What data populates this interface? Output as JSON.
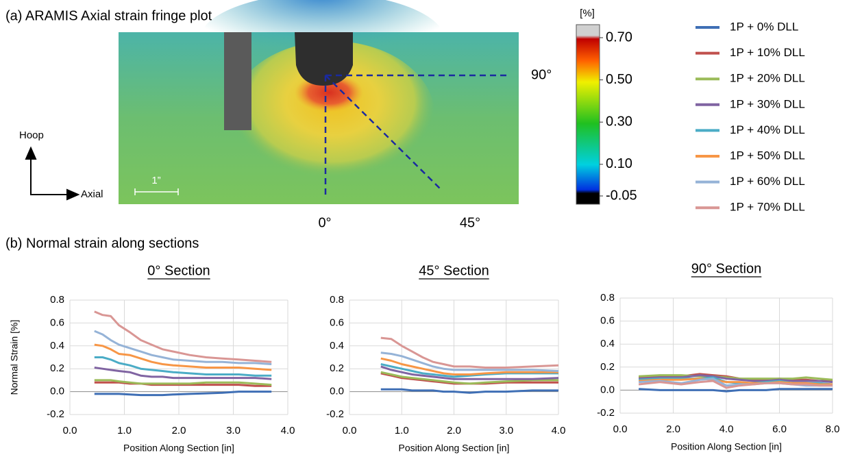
{
  "figure": {
    "panel_a_title": "(a) ARAMIS Axial strain fringe plot",
    "panel_b_title": "(b) Normal strain along sections",
    "hoop_label": "Hoop",
    "axial_label": "Axial",
    "scale_label": "1”",
    "angle_labels": [
      "90°",
      "0°",
      "45°"
    ],
    "colorbar": {
      "unit": "[%]",
      "ylim": [
        0.7,
        -0.05
      ],
      "ticks": [
        {
          "value": 0.7,
          "label": "0.70"
        },
        {
          "value": 0.5,
          "label": "0.50"
        },
        {
          "value": 0.3,
          "label": "0.30"
        },
        {
          "value": 0.1,
          "label": "0.10"
        },
        -0.05
      ]
    }
  },
  "chart_data": [
    {
      "type": "line",
      "title": "0° Section",
      "x_label": "Position Along Section [in]",
      "y_label": "Normal Strain [%]",
      "xlim": [
        0,
        4
      ],
      "ylim": [
        -0.2,
        0.8
      ],
      "grid": true,
      "xticks": [
        {
          "value": 0,
          "label": "0.0"
        },
        {
          "value": 1,
          "label": "1.0"
        },
        {
          "value": 2,
          "label": "2.0"
        },
        {
          "value": 3,
          "label": "3.0"
        },
        {
          "value": 4,
          "label": "4.0"
        }
      ],
      "yticks": [
        -0.2,
        {
          "value": 0,
          "label": "0.0"
        },
        0.2,
        0.4,
        0.6,
        0.8
      ],
      "x": [
        0.45,
        0.6,
        0.75,
        0.9,
        1.1,
        1.3,
        1.5,
        1.7,
        1.9,
        2.2,
        2.5,
        2.8,
        3.1,
        3.4,
        3.7
      ],
      "series": [
        {
          "name": "1P + 0% DLL",
          "color": "#3f6fb5",
          "values": [
            -0.02,
            -0.02,
            -0.02,
            -0.02,
            -0.025,
            -0.03,
            -0.03,
            -0.03,
            -0.025,
            -0.02,
            -0.015,
            -0.01,
            0,
            0,
            0
          ]
        },
        {
          "name": "1P + 10% DLL",
          "color": "#c0504d",
          "values": [
            0.08,
            0.08,
            0.08,
            0.08,
            0.07,
            0.07,
            0.06,
            0.06,
            0.06,
            0.06,
            0.06,
            0.06,
            0.06,
            0.05,
            0.05
          ]
        },
        {
          "name": "1P + 20% DLL",
          "color": "#9bbb59",
          "values": [
            0.1,
            0.1,
            0.1,
            0.09,
            0.08,
            0.07,
            0.07,
            0.07,
            0.07,
            0.07,
            0.08,
            0.08,
            0.08,
            0.07,
            0.06
          ]
        },
        {
          "name": "1P + 30% DLL",
          "color": "#8064a2",
          "values": [
            0.21,
            0.2,
            0.19,
            0.18,
            0.17,
            0.14,
            0.13,
            0.13,
            0.12,
            0.12,
            0.12,
            0.12,
            0.12,
            0.12,
            0.11
          ]
        },
        {
          "name": "1P + 40% DLL",
          "color": "#4bacc6",
          "values": [
            0.3,
            0.3,
            0.28,
            0.25,
            0.23,
            0.2,
            0.19,
            0.18,
            0.17,
            0.16,
            0.15,
            0.15,
            0.15,
            0.14,
            0.14
          ]
        },
        {
          "name": "1P + 50% DLL",
          "color": "#f79646",
          "values": [
            0.41,
            0.4,
            0.37,
            0.33,
            0.32,
            0.29,
            0.26,
            0.24,
            0.23,
            0.22,
            0.21,
            0.21,
            0.21,
            0.2,
            0.19
          ]
        },
        {
          "name": "1P + 60% DLL",
          "color": "#95b3d7",
          "values": [
            0.53,
            0.5,
            0.45,
            0.41,
            0.38,
            0.35,
            0.32,
            0.3,
            0.28,
            0.27,
            0.26,
            0.26,
            0.25,
            0.25,
            0.24
          ]
        },
        {
          "name": "1P + 70% DLL",
          "color": "#d99694",
          "values": [
            0.7,
            0.67,
            0.66,
            0.58,
            0.52,
            0.45,
            0.41,
            0.37,
            0.35,
            0.32,
            0.3,
            0.29,
            0.28,
            0.27,
            0.26
          ]
        }
      ]
    },
    {
      "type": "line",
      "title": "45° Section",
      "x_label": "Position Along Section [in]",
      "xlim": [
        0,
        4
      ],
      "ylim": [
        -0.2,
        0.8
      ],
      "grid": true,
      "xticks": [
        {
          "value": 0,
          "label": "0.0"
        },
        {
          "value": 1,
          "label": "1.0"
        },
        {
          "value": 2,
          "label": "2.0"
        },
        {
          "value": 3,
          "label": "3.0"
        },
        {
          "value": 4,
          "label": "4.0"
        }
      ],
      "yticks": [
        -0.2,
        {
          "value": 0,
          "label": "0.0"
        },
        0.2,
        0.4,
        0.6,
        0.8
      ],
      "x": [
        0.6,
        0.8,
        1.0,
        1.2,
        1.4,
        1.6,
        1.8,
        2.0,
        2.3,
        2.6,
        3.0,
        3.5,
        4.0
      ],
      "series": [
        {
          "name": "1P + 0% DLL",
          "color": "#3f6fb5",
          "values": [
            0.02,
            0.02,
            0.02,
            0.01,
            0.01,
            0.01,
            0,
            0,
            -0.01,
            0,
            0,
            0.01,
            0.01
          ]
        },
        {
          "name": "1P + 10% DLL",
          "color": "#c0504d",
          "values": [
            0.16,
            0.14,
            0.12,
            0.11,
            0.1,
            0.09,
            0.08,
            0.07,
            0.07,
            0.07,
            0.08,
            0.08,
            0.08
          ]
        },
        {
          "name": "1P + 20% DLL",
          "color": "#9bbb59",
          "values": [
            0.17,
            0.15,
            0.13,
            0.12,
            0.11,
            0.1,
            0.09,
            0.08,
            0.07,
            0.08,
            0.09,
            0.1,
            0.1
          ]
        },
        {
          "name": "1P + 30% DLL",
          "color": "#8064a2",
          "values": [
            0.22,
            0.19,
            0.17,
            0.15,
            0.14,
            0.13,
            0.12,
            0.11,
            0.11,
            0.11,
            0.11,
            0.11,
            0.12
          ]
        },
        {
          "name": "1P + 40% DLL",
          "color": "#4bacc6",
          "values": [
            0.24,
            0.22,
            0.2,
            0.18,
            0.16,
            0.15,
            0.14,
            0.13,
            0.14,
            0.15,
            0.16,
            0.16,
            0.16
          ]
        },
        {
          "name": "1P + 50% DLL",
          "color": "#f79646",
          "values": [
            0.29,
            0.27,
            0.24,
            0.22,
            0.2,
            0.18,
            0.16,
            0.15,
            0.15,
            0.16,
            0.17,
            0.17,
            0.17
          ]
        },
        {
          "name": "1P + 60% DLL",
          "color": "#95b3d7",
          "values": [
            0.34,
            0.33,
            0.31,
            0.28,
            0.25,
            0.22,
            0.2,
            0.19,
            0.19,
            0.19,
            0.19,
            0.19,
            0.18
          ]
        },
        {
          "name": "1P + 70% DLL",
          "color": "#d99694",
          "values": [
            0.47,
            0.46,
            0.4,
            0.35,
            0.3,
            0.26,
            0.24,
            0.22,
            0.22,
            0.21,
            0.21,
            0.22,
            0.23
          ]
        }
      ]
    },
    {
      "type": "line",
      "title": "90° Section",
      "x_label": "Position Along Section [in]",
      "xlim": [
        0,
        8
      ],
      "ylim": [
        -0.2,
        0.8
      ],
      "grid": true,
      "xticks": [
        {
          "value": 0,
          "label": "0.0"
        },
        {
          "value": 2,
          "label": "2.0"
        },
        {
          "value": 4,
          "label": "4.0"
        },
        {
          "value": 6,
          "label": "6.0"
        },
        {
          "value": 8,
          "label": "8.0"
        }
      ],
      "yticks": [
        -0.2,
        {
          "value": 0,
          "label": "0.0"
        },
        0.2,
        0.4,
        0.6,
        0.8
      ],
      "x": [
        0.7,
        1.5,
        2.3,
        3.0,
        3.5,
        4.0,
        4.5,
        5.0,
        5.5,
        6.0,
        6.5,
        7.0,
        7.5,
        8.0
      ],
      "series": [
        {
          "name": "1P + 0% DLL",
          "color": "#3f6fb5",
          "values": [
            0.01,
            0,
            0,
            0,
            0,
            -0.01,
            0,
            0,
            0,
            0.01,
            0.01,
            0.01,
            0.01,
            0.01
          ]
        },
        {
          "name": "1P + 10% DLL",
          "color": "#c0504d",
          "values": [
            0.11,
            0.12,
            0.12,
            0.14,
            0.13,
            0.12,
            0.1,
            0.09,
            0.09,
            0.1,
            0.09,
            0.09,
            0.08,
            0.08
          ]
        },
        {
          "name": "1P + 20% DLL",
          "color": "#9bbb59",
          "values": [
            0.12,
            0.13,
            0.13,
            0.12,
            0.12,
            0.11,
            0.1,
            0.1,
            0.1,
            0.1,
            0.1,
            0.11,
            0.1,
            0.09
          ]
        },
        {
          "name": "1P + 30% DLL",
          "color": "#8064a2",
          "values": [
            0.1,
            0.11,
            0.11,
            0.13,
            0.12,
            0.1,
            0.09,
            0.08,
            0.08,
            0.09,
            0.08,
            0.08,
            0.08,
            0.07
          ]
        },
        {
          "name": "1P + 40% DLL",
          "color": "#4bacc6",
          "values": [
            0.09,
            0.1,
            0.1,
            0.1,
            0.11,
            0.07,
            0.06,
            0.06,
            0.07,
            0.08,
            0.06,
            0.06,
            0.06,
            0.05
          ]
        },
        {
          "name": "1P + 50% DLL",
          "color": "#f79646",
          "values": [
            0.08,
            0.09,
            0.09,
            0.1,
            0.09,
            0.07,
            0.07,
            0.06,
            0.06,
            0.07,
            0.06,
            0.06,
            0.05,
            0.05
          ]
        },
        {
          "name": "1P + 60% DLL",
          "color": "#95b3d7",
          "values": [
            0.07,
            0.08,
            0.06,
            0.09,
            0.1,
            0.04,
            0.05,
            0.05,
            0.06,
            0.06,
            0.05,
            0.04,
            0.04,
            0.04
          ]
        },
        {
          "name": "1P + 70% DLL",
          "color": "#d99694",
          "values": [
            0.05,
            0.07,
            0.05,
            0.07,
            0.08,
            0.02,
            0.04,
            0.05,
            0.06,
            0.06,
            0.05,
            0.05,
            0.04,
            0.04
          ]
        }
      ]
    }
  ]
}
